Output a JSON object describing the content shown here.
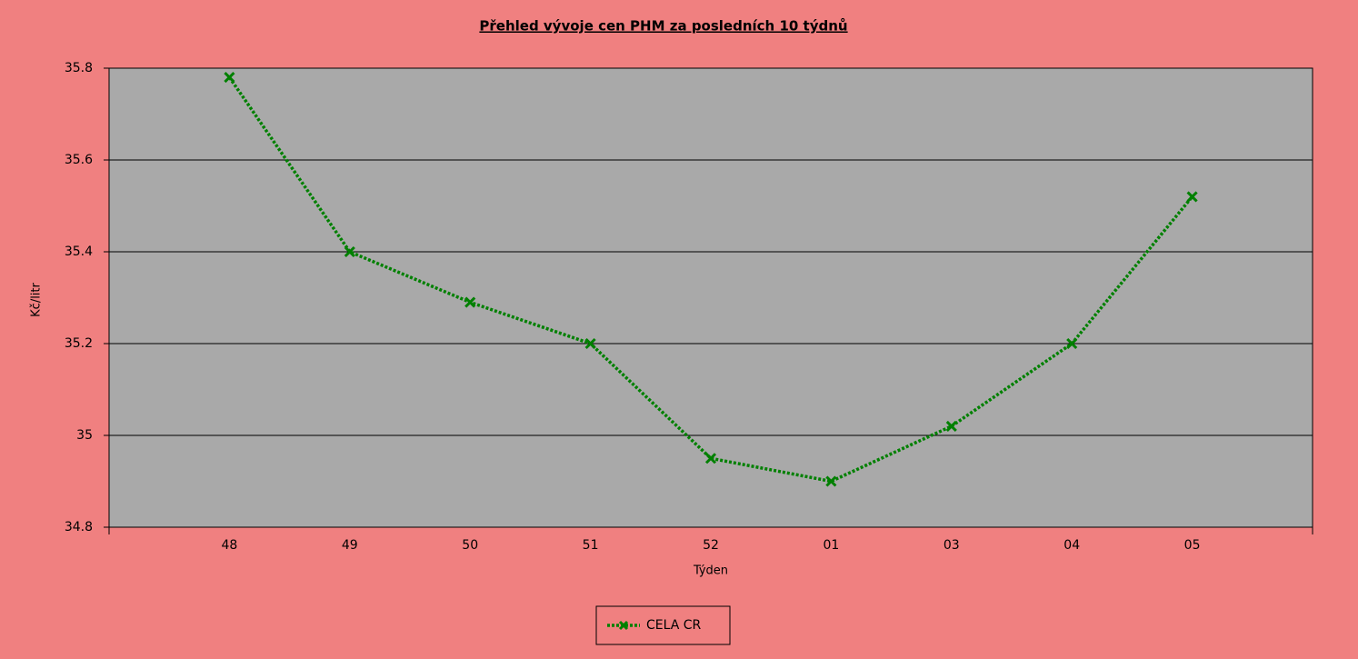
{
  "chart_data": {
    "type": "line",
    "title": "Přehled vývoje cen PHM za posledních 10 týdnů",
    "x_label": "Týden",
    "y_label": "Kč/litr",
    "categories": [
      "48",
      "49",
      "50",
      "51",
      "52",
      "01",
      "03",
      "04",
      "05"
    ],
    "series": [
      {
        "name": "CELA CR",
        "color": "#008000",
        "values": [
          35.78,
          35.4,
          35.29,
          35.2,
          34.95,
          34.9,
          35.02,
          35.2,
          35.52
        ]
      }
    ],
    "ylim": [
      34.8,
      35.8
    ],
    "yticks": [
      34.8,
      35,
      35.2,
      35.4,
      35.6,
      35.8
    ],
    "grid": true,
    "legend": "bottom"
  }
}
